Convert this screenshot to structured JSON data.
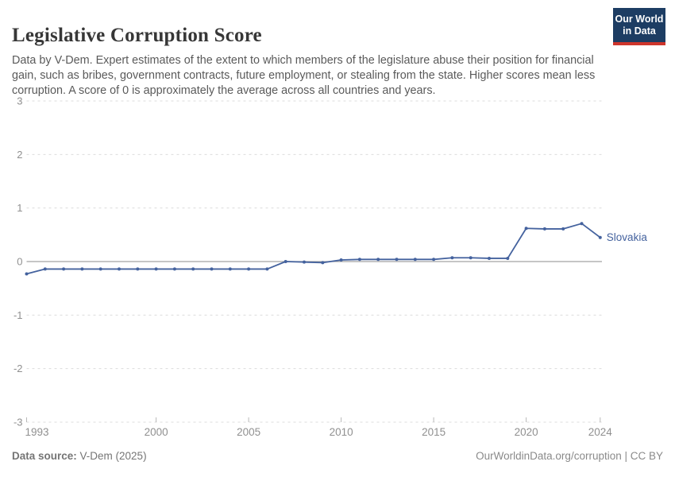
{
  "header": {
    "title": "Legislative Corruption Score",
    "subtitle": "Data by V-Dem. Expert estimates of the extent to which members of the legislature abuse their position for financial gain, such as bribes, government contracts, future employment, or stealing from the state. Higher scores mean less corruption. A score of 0 is approximately the average across all countries and years."
  },
  "logo": {
    "line1": "Our World",
    "line2": "in Data"
  },
  "footer": {
    "source_label": "Data source:",
    "source_value": " V-Dem (2025)",
    "right_text": "OurWorldinData.org/corruption | CC BY"
  },
  "colors": {
    "line": "#44629e",
    "entity_label": "#44629e",
    "gridline": "#dcdcdc",
    "zero_line": "#a5a5a5",
    "axis_text": "#909090",
    "tick_mark": "#b9b9b9",
    "logo_navy": "#1d3d63",
    "logo_red": "#ce352c"
  },
  "chart_data": {
    "type": "line",
    "title": "Legislative Corruption Score",
    "xlabel": "",
    "ylabel": "",
    "ylim": [
      -3,
      3
    ],
    "grid": true,
    "legend_position": "end-of-line",
    "x": [
      1993,
      1994,
      1995,
      1996,
      1997,
      1998,
      1999,
      2000,
      2001,
      2002,
      2003,
      2004,
      2005,
      2006,
      2007,
      2008,
      2009,
      2010,
      2011,
      2012,
      2013,
      2014,
      2015,
      2016,
      2017,
      2018,
      2019,
      2020,
      2021,
      2022,
      2023,
      2024
    ],
    "x_ticks": [
      1993,
      2000,
      2005,
      2010,
      2015,
      2020,
      2024
    ],
    "y_ticks": [
      3,
      2,
      1,
      0,
      -1,
      -2,
      -3
    ],
    "series": [
      {
        "name": "Slovakia",
        "values": [
          -0.23,
          -0.14,
          -0.14,
          -0.14,
          -0.14,
          -0.14,
          -0.14,
          -0.14,
          -0.14,
          -0.14,
          -0.14,
          -0.14,
          -0.14,
          -0.14,
          0,
          -0.01,
          -0.02,
          0.03,
          0.04,
          0.04,
          0.04,
          0.04,
          0.04,
          0.07,
          0.07,
          0.06,
          0.06,
          0.62,
          0.61,
          0.61,
          0.71,
          0.45
        ]
      }
    ]
  }
}
